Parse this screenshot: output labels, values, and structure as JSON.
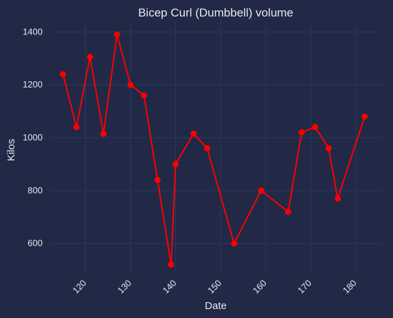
{
  "chart_data": {
    "type": "line",
    "title": "Bicep Curl (Dumbbell) volume",
    "xlabel": "Date",
    "ylabel": "Kilos",
    "xlim": [
      112,
      186
    ],
    "ylim": [
      490,
      1440
    ],
    "xticks": [
      120,
      130,
      140,
      150,
      160,
      170,
      180
    ],
    "yticks": [
      600,
      800,
      1000,
      1200,
      1400
    ],
    "grid": true,
    "series": [
      {
        "color": "#ff0000",
        "points": [
          [
            115,
            1240
          ],
          [
            118,
            1040
          ],
          [
            121,
            1305
          ],
          [
            124,
            1015
          ],
          [
            127,
            1390
          ],
          [
            130,
            1200
          ],
          [
            133,
            1160
          ],
          [
            136,
            840
          ],
          [
            139,
            520
          ],
          [
            140,
            900
          ],
          [
            144,
            1015
          ],
          [
            147,
            960
          ],
          [
            153,
            600
          ],
          [
            159,
            800
          ],
          [
            165,
            720
          ],
          [
            168,
            1020
          ],
          [
            171,
            1040
          ],
          [
            174,
            960
          ],
          [
            176,
            770
          ],
          [
            182,
            1080
          ]
        ]
      }
    ]
  },
  "colors": {
    "background": "#212946",
    "grid": "#2c3a61",
    "text": "#e8e8ee",
    "line": "#ff0000"
  }
}
